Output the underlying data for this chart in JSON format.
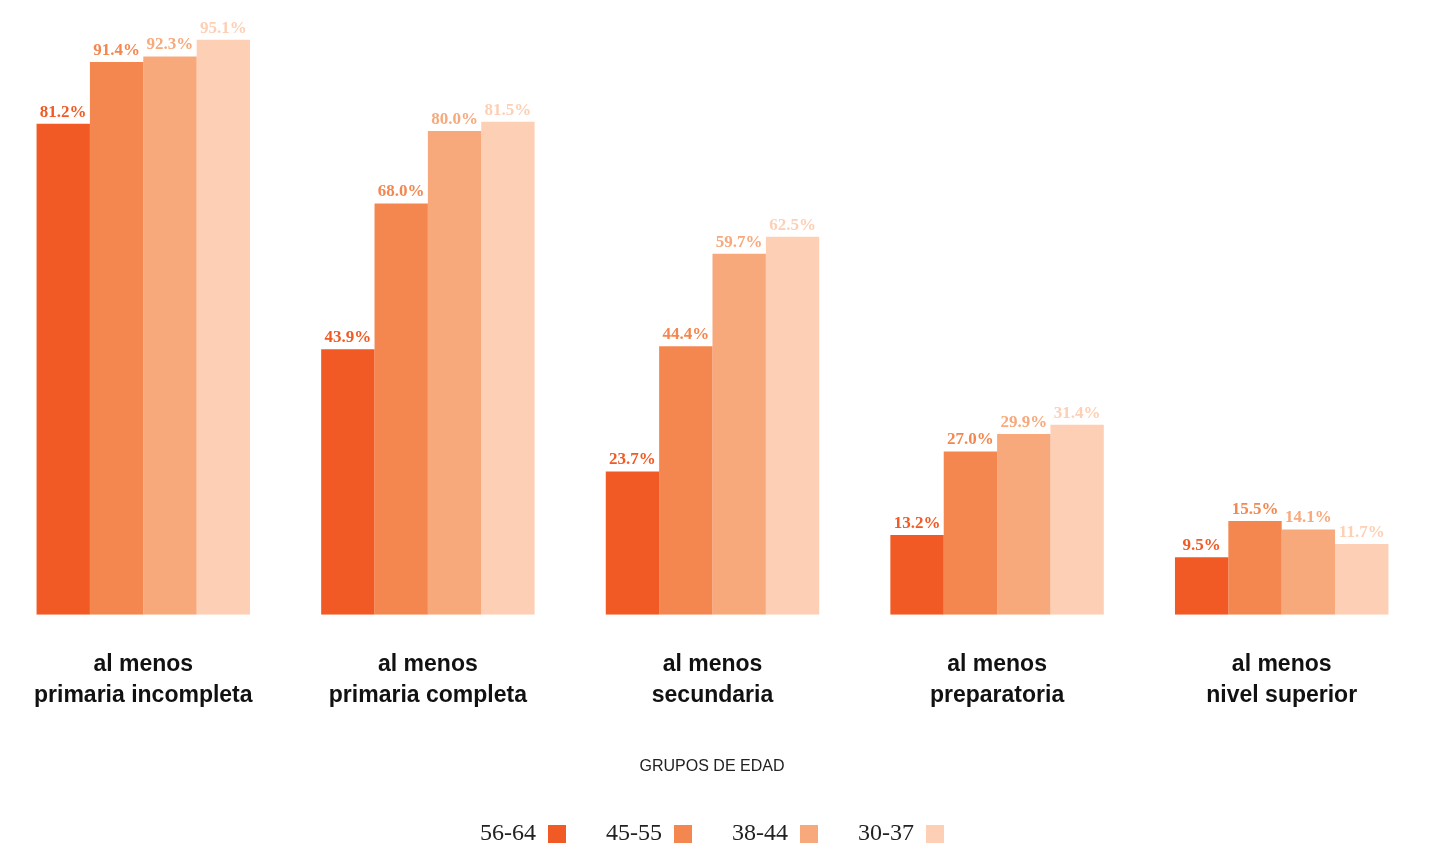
{
  "chart_data": {
    "type": "bar",
    "categories": [
      "al menos\nprimaria incompleta",
      "al menos\nprimaria completa",
      "al menos\nsecundaria",
      "al menos\npreparatoria",
      "al menos\nnivel superior"
    ],
    "series": [
      {
        "name": "56-64",
        "color": "#f15a24",
        "values": [
          81.2,
          43.9,
          23.7,
          13.2,
          9.5
        ],
        "value_labels": [
          "81.2%",
          "43.9%",
          "23.7%",
          "13.2%",
          "9.5%"
        ]
      },
      {
        "name": "45-55",
        "color": "#f4874f",
        "values": [
          91.4,
          68.0,
          44.4,
          27.0,
          15.5
        ],
        "value_labels": [
          "91.4%",
          "68.0%",
          "44.4%",
          "27.0%",
          "15.5%"
        ]
      },
      {
        "name": "38-44",
        "color": "#f7a97c",
        "values": [
          92.3,
          80.0,
          59.7,
          29.9,
          14.1
        ],
        "value_labels": [
          "92.3%",
          "80.0%",
          "59.7%",
          "29.9%",
          "14.1%"
        ]
      },
      {
        "name": "30-37",
        "color": "#fdd0b5",
        "values": [
          95.1,
          81.5,
          62.5,
          31.4,
          11.7
        ],
        "value_labels": [
          "95.1%",
          "81.5%",
          "62.5%",
          "31.4%",
          "11.7%"
        ]
      }
    ],
    "legend": "bottom",
    "legend_title": "GRUPOS DE EDAD"
  }
}
